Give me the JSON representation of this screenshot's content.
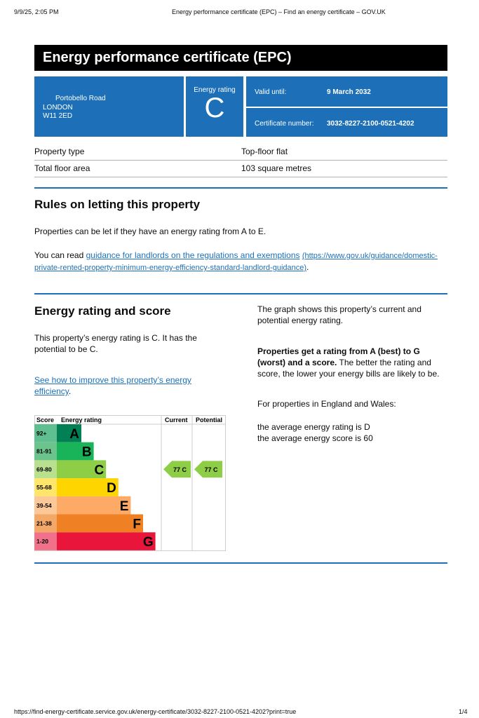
{
  "browser": {
    "datetime": "9/9/25, 2:05 PM",
    "title": "Energy performance certificate (EPC) – Find an energy certificate – GOV.UK",
    "url": "https://find-energy-certificate.service.gov.uk/energy-certificate/3032-8227-2100-0521-4202?print=true",
    "page": "1/4"
  },
  "banner": {
    "title": "Energy performance certificate (EPC)"
  },
  "summary": {
    "address": [
      "Portobello Road",
      "LONDON",
      "W11 2ED"
    ],
    "rating_label": "Energy rating",
    "rating": "C",
    "valid_label": "Valid until:",
    "valid_value": "9 March 2032",
    "cert_label": "Certificate number:",
    "cert_value": "3032-8227-2100-0521-4202"
  },
  "property": [
    {
      "label": "Property type",
      "value": "Top-floor flat"
    },
    {
      "label": "Total floor area",
      "value": "103 square metres"
    }
  ],
  "rules": {
    "heading": "Rules on letting this property",
    "p1": "Properties can be let if they have an energy rating from A to E.",
    "p2_prefix": "You can read ",
    "p2_link": "guidance for landlords on the regulations and exemptions",
    "p2_url": "(https://www.gov.uk/guidance/domestic-private-rented-property-minimum-energy-efficiency-standard-landlord-guidance)",
    "p2_suffix": "."
  },
  "score": {
    "heading": "Energy rating and score",
    "p1": "This property’s energy rating is C. It has the potential to be C.",
    "link": "See how to improve this property’s energy efficiency",
    "link_suffix": ".",
    "r1": "The graph shows this property’s current and potential energy rating.",
    "r2_bold": "Properties get a rating from A (best) to G (worst) and a score.",
    "r2_rest": " The better the rating and score, the lower your energy bills are likely to be.",
    "r3": "For properties in England and Wales:",
    "r4": "the average energy rating is D",
    "r5": "the average energy score is 60"
  },
  "chart_data": {
    "type": "table",
    "headers": [
      "Score",
      "Energy rating",
      "Current",
      "Potential"
    ],
    "bands": [
      {
        "score": "92+",
        "letter": "A",
        "color": "#008054",
        "light": "#5fbf91"
      },
      {
        "score": "81-91",
        "letter": "B",
        "color": "#19b459",
        "light": "#6cc48d"
      },
      {
        "score": "69-80",
        "letter": "C",
        "color": "#8dce46",
        "light": "#b9e08f"
      },
      {
        "score": "55-68",
        "letter": "D",
        "color": "#ffd500",
        "light": "#ffe66b"
      },
      {
        "score": "39-54",
        "letter": "E",
        "color": "#fcaa65",
        "light": "#fdc897"
      },
      {
        "score": "21-38",
        "letter": "F",
        "color": "#ef8023",
        "light": "#f4a868"
      },
      {
        "score": "1-20",
        "letter": "G",
        "color": "#e9153b",
        "light": "#f07189"
      }
    ],
    "current": {
      "score": 77,
      "letter": "C",
      "label": "77  C"
    },
    "potential": {
      "score": 77,
      "letter": "C",
      "label": "77  C"
    }
  }
}
